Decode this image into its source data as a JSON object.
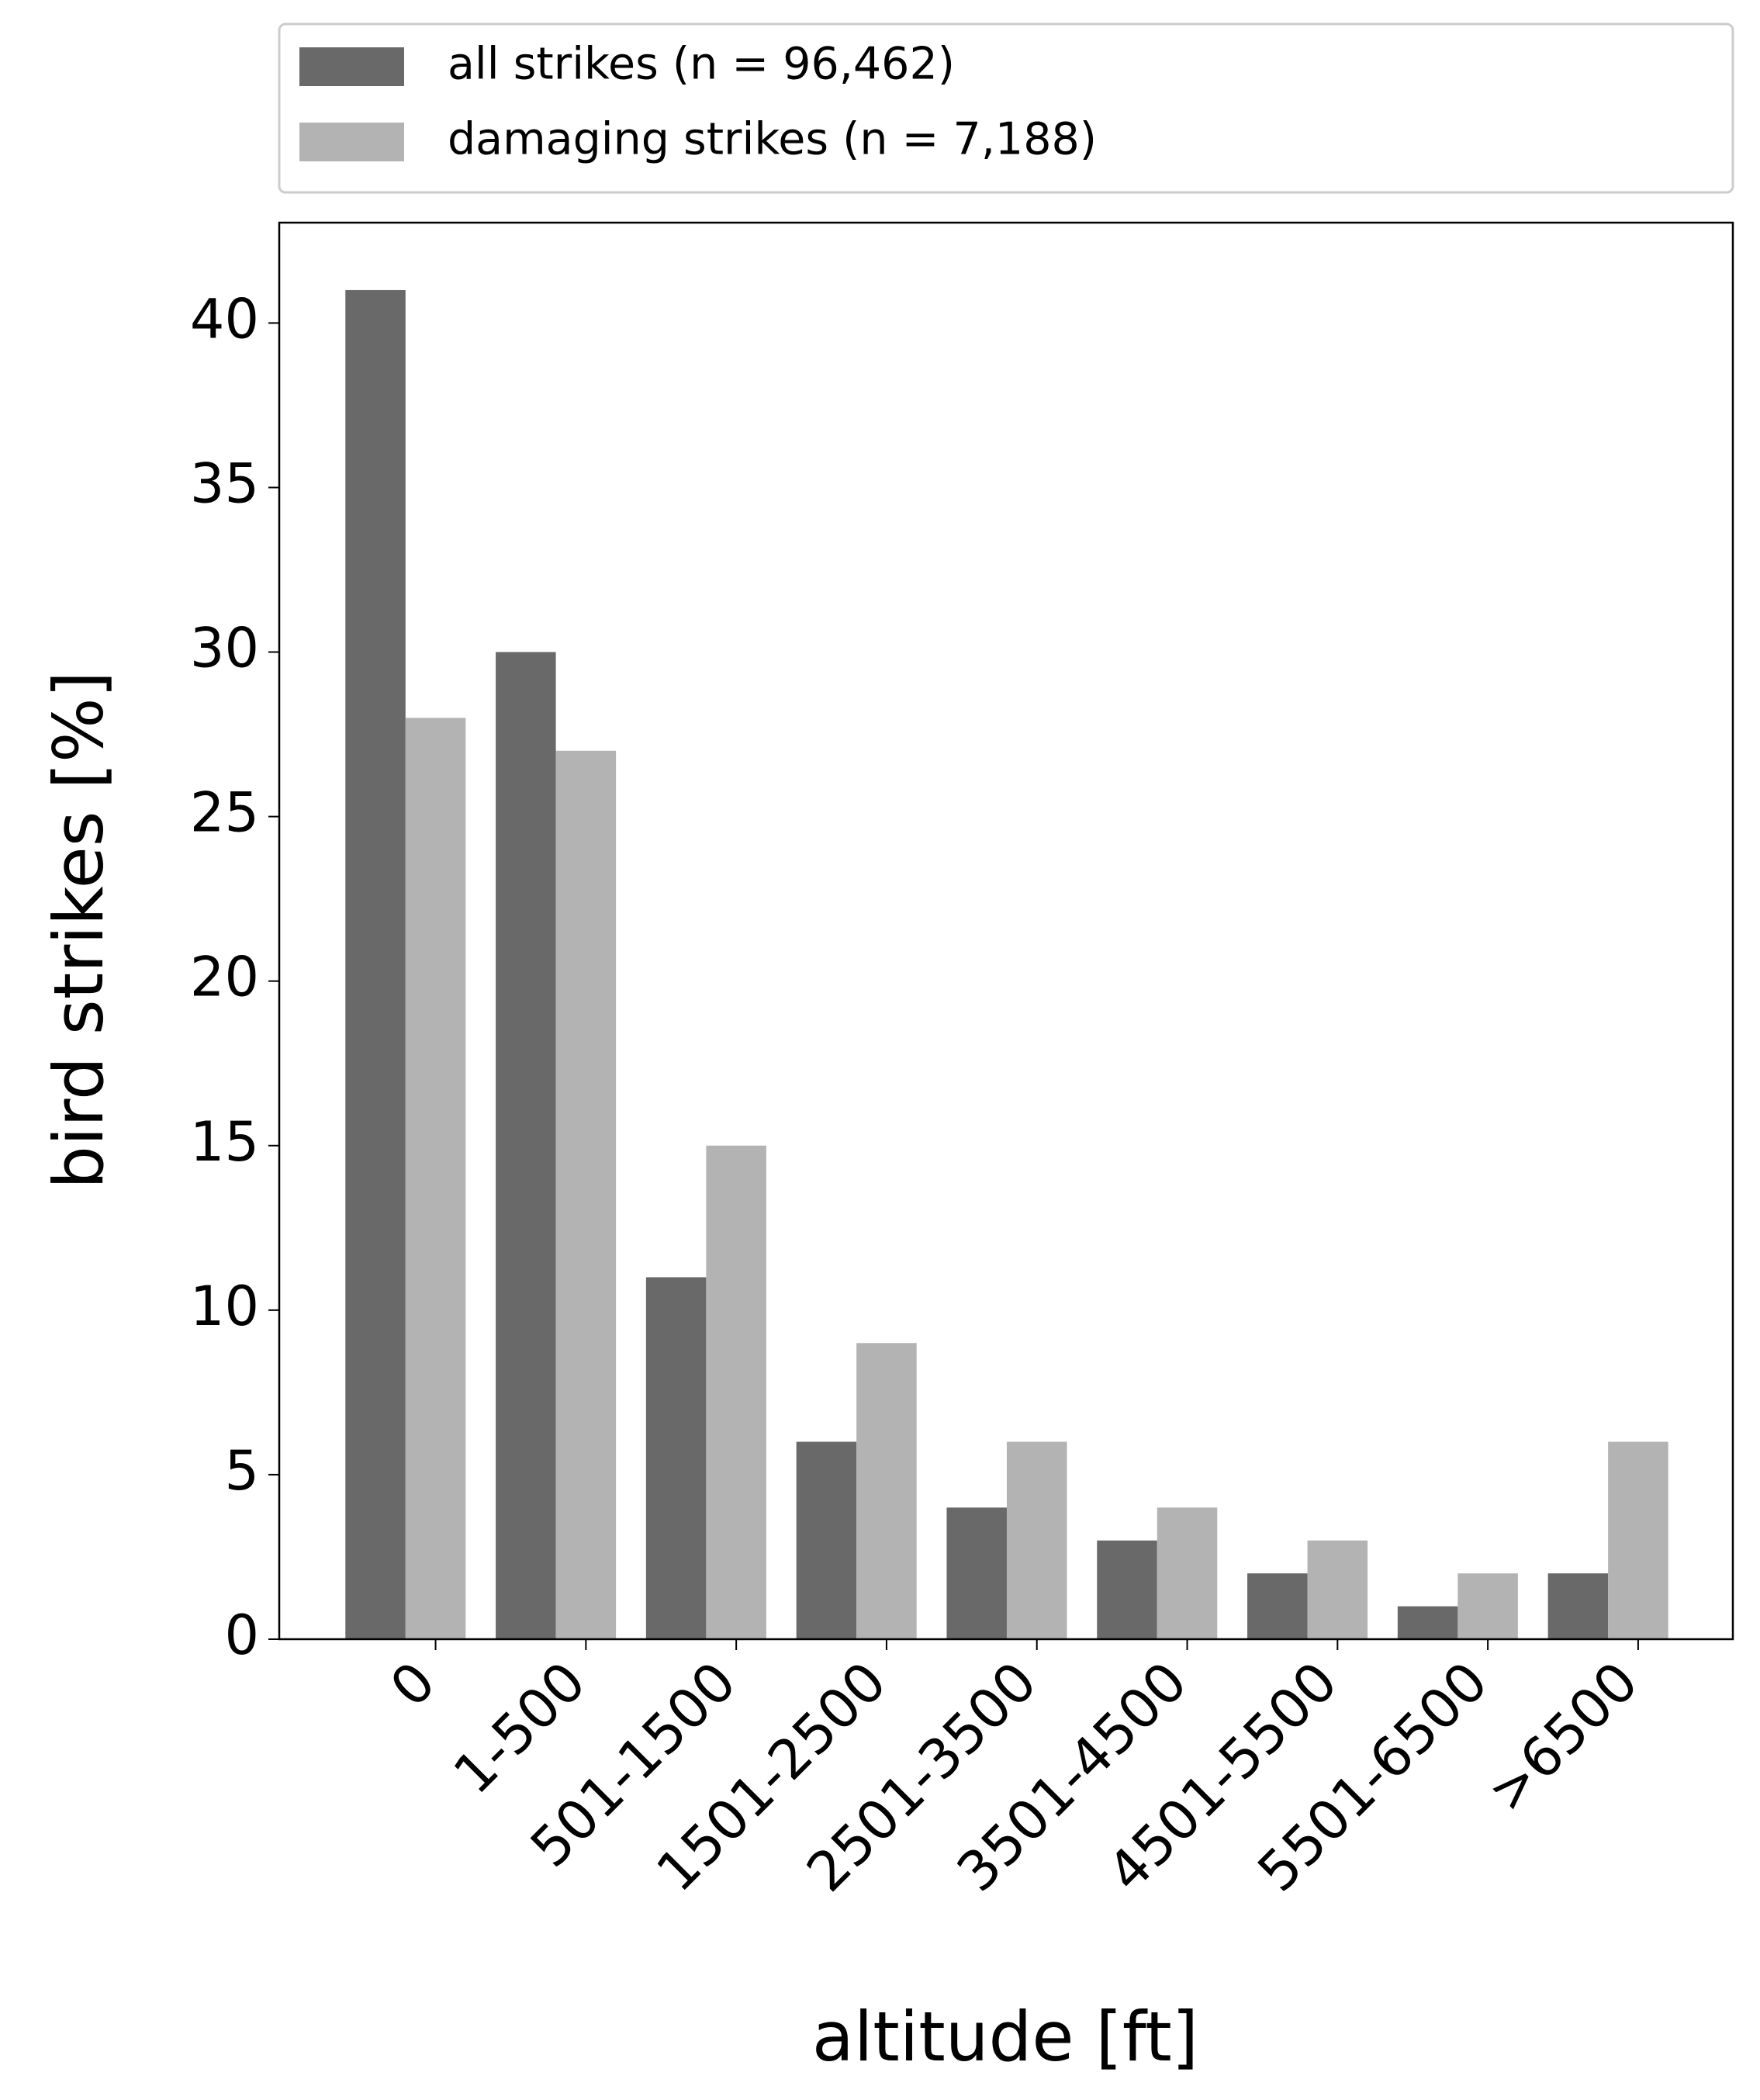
{
  "chart_data": {
    "type": "bar",
    "categories": [
      "0",
      "1-500",
      "501-1500",
      "1501-2500",
      "2501-3500",
      "3501-4500",
      "4501-5500",
      "5501-6500",
      ">6500"
    ],
    "series": [
      {
        "name": "all strikes (n = 96,462)",
        "color": "#696969",
        "values": [
          41,
          30,
          11,
          6,
          4,
          3,
          2,
          1,
          2
        ]
      },
      {
        "name": "damaging strikes (n = 7,188)",
        "color": "#b3b3b3",
        "values": [
          28,
          27,
          15,
          9,
          6,
          4,
          3,
          2,
          6
        ]
      }
    ],
    "x_label": "altitude [ft]",
    "y_label": "bird strikes [%]",
    "ylim": [
      0,
      43.05
    ],
    "yticks": [
      0,
      5,
      10,
      15,
      20,
      25,
      30,
      35,
      40
    ],
    "legend": "top",
    "grid": false
  }
}
